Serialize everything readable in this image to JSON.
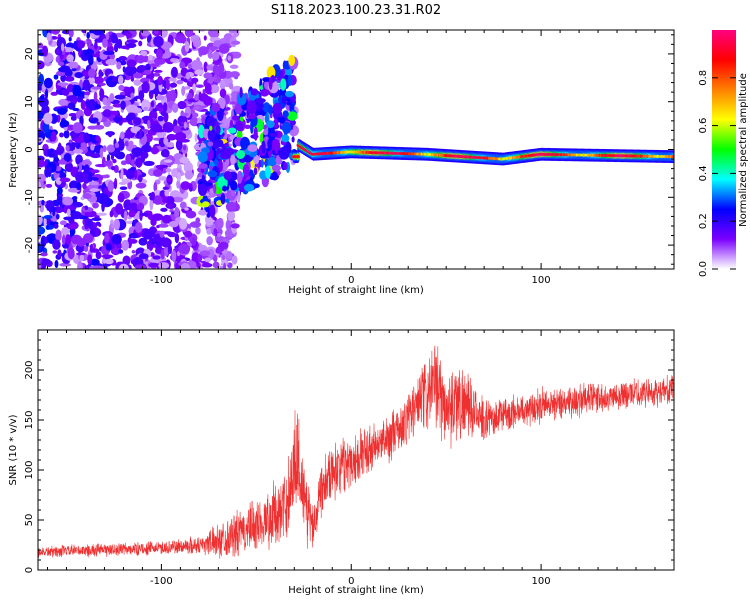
{
  "title": "S118.2023.100.23.31.R02",
  "chart_data": [
    {
      "type": "heatmap",
      "xlabel": "Height of straight line (km)",
      "ylabel": "Frequency (Hz)",
      "xlim": [
        -165,
        170
      ],
      "ylim": [
        -25,
        25
      ],
      "x_ticks": [
        -100,
        0,
        100
      ],
      "y_ticks": [
        -20,
        -10,
        0,
        10,
        20
      ],
      "colorbar": {
        "label": "Normalized spectral amplitude",
        "range": [
          0,
          1
        ],
        "ticks": [
          0.0,
          0.2,
          0.4,
          0.6,
          0.8
        ],
        "tick_labels": [
          "0.0",
          "0.2",
          "0.4",
          "0.6",
          "0.8"
        ],
        "colors": [
          "#ffffff",
          "#7a00ff",
          "#0000ff",
          "#00ffff",
          "#00ff00",
          "#ffff00",
          "#ff8000",
          "#ff0000",
          "#ff0080"
        ]
      },
      "features": [
        {
          "x_range": [
            -165,
            -80
          ],
          "freq_range": [
            -25,
            25
          ],
          "amplitude": 0.25,
          "description": "scattered noise"
        },
        {
          "x_range": [
            -80,
            -30
          ],
          "freq_range": [
            -10,
            15
          ],
          "amplitude": 0.35,
          "description": "dispersed diagonal band"
        },
        {
          "x_range": [
            -30,
            170
          ],
          "center_freq": [
            [
              -28,
              1
            ],
            [
              -20,
              -1
            ],
            [
              0,
              -0.5
            ],
            [
              40,
              -1
            ],
            [
              60,
              -1.5
            ],
            [
              80,
              -2
            ],
            [
              100,
              -1
            ],
            [
              170,
              -1.5
            ]
          ],
          "amplitude": 0.85,
          "description": "narrow tone band"
        }
      ]
    },
    {
      "type": "line",
      "xlabel": "Height of straight line (km)",
      "ylabel": "SNR (10 * v/v)",
      "xlim": [
        -165,
        170
      ],
      "ylim": [
        0,
        240
      ],
      "x_ticks": [
        -100,
        0,
        100
      ],
      "y_ticks": [
        0,
        50,
        100,
        150,
        200
      ],
      "color": "#ee3030",
      "series_envelope": {
        "x": [
          -165,
          -130,
          -100,
          -80,
          -60,
          -45,
          -35,
          -28,
          -25,
          -20,
          -15,
          -10,
          0,
          15,
          25,
          35,
          45,
          50,
          55,
          60,
          70,
          80,
          100,
          120,
          140,
          170
        ],
        "mean": [
          18,
          20,
          22,
          25,
          35,
          50,
          60,
          120,
          70,
          45,
          90,
          100,
          110,
          125,
          140,
          165,
          185,
          160,
          170,
          165,
          150,
          155,
          165,
          170,
          175,
          180
        ],
        "spread": [
          6,
          7,
          7,
          10,
          25,
          30,
          40,
          60,
          45,
          30,
          30,
          30,
          30,
          25,
          25,
          35,
          45,
          40,
          45,
          35,
          20,
          18,
          18,
          18,
          15,
          15
        ]
      }
    }
  ]
}
